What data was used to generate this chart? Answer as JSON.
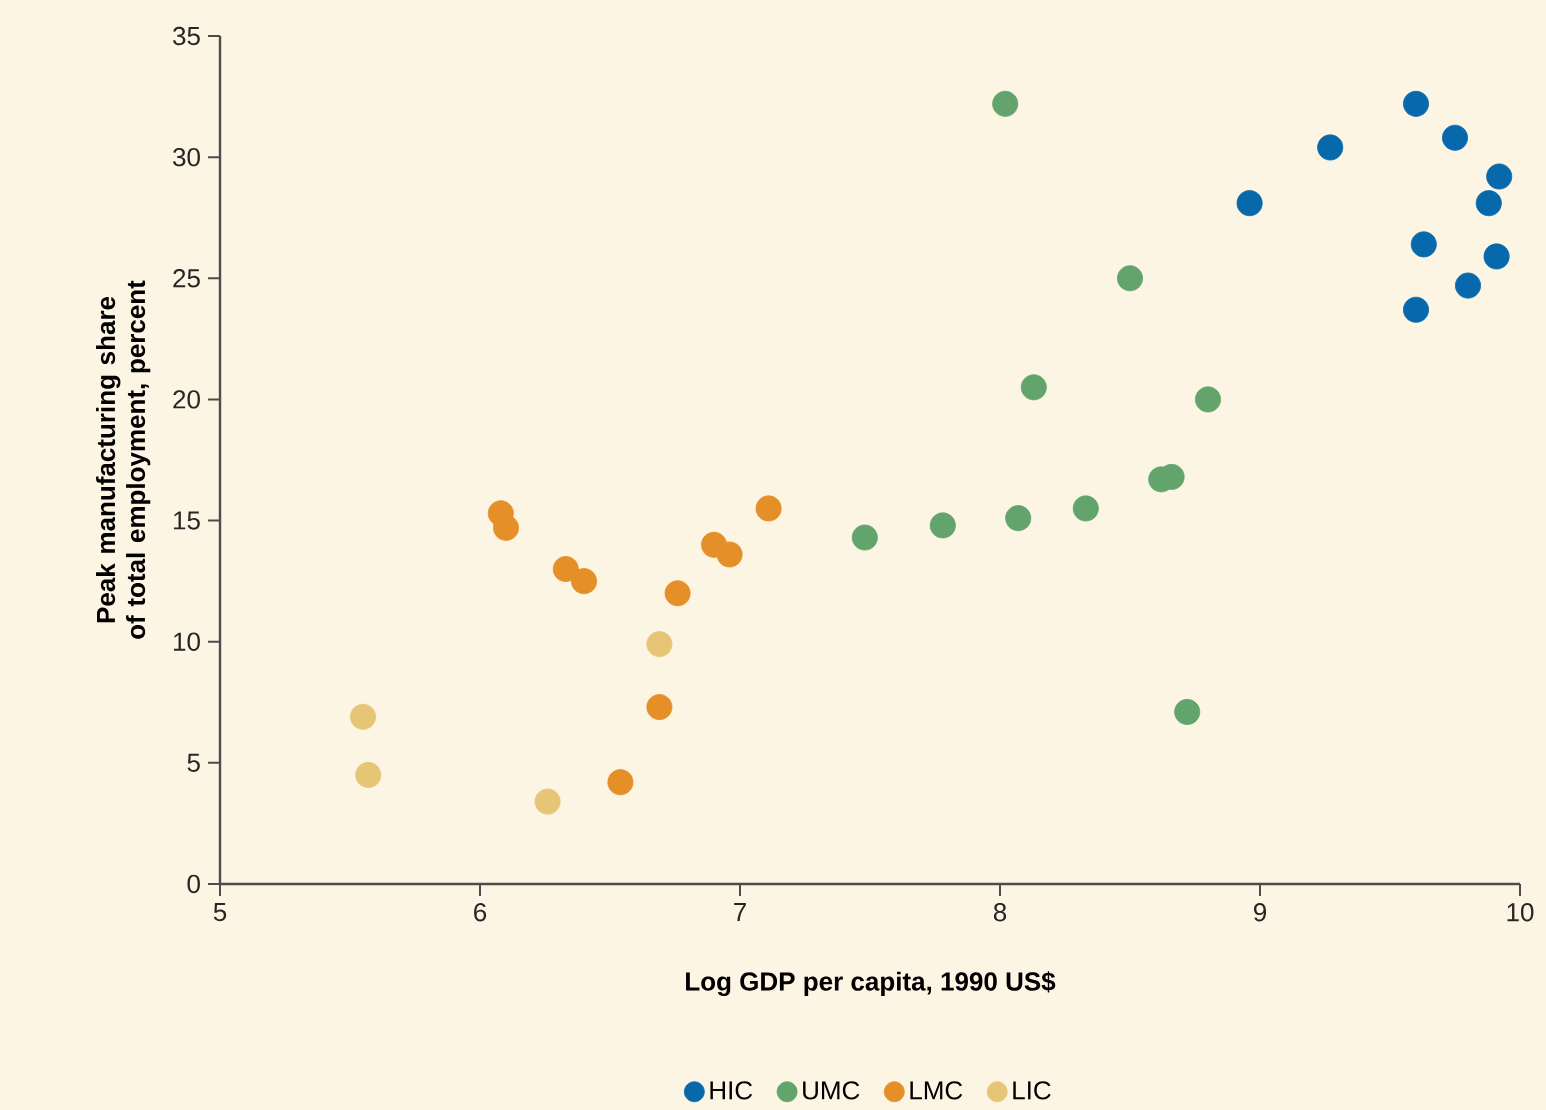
{
  "chart_data": {
    "type": "scatter",
    "xlabel": "Log GDP per capita, 1990 US$",
    "ylabel": "Peak manufacturing share of total employment, percent",
    "xlim": [
      5,
      10
    ],
    "xticks": [
      5,
      6,
      7,
      8,
      9,
      10
    ],
    "ylim": [
      0,
      35
    ],
    "yticks": [
      0,
      5,
      10,
      15,
      20,
      25,
      30,
      35
    ],
    "grid": false,
    "legend": "bottom",
    "marker": "circle",
    "series": [
      {
        "name": "HIC",
        "color": "#0868ac",
        "x": [
          9.6,
          9.27,
          9.75,
          9.92,
          8.96,
          9.88,
          9.63,
          9.91,
          9.8,
          9.6
        ],
        "values": [
          32.2,
          30.4,
          30.8,
          29.2,
          28.1,
          28.1,
          26.4,
          25.9,
          24.7,
          23.7
        ]
      },
      {
        "name": "UMC",
        "color": "#62a46c",
        "x": [
          8.02,
          8.5,
          8.13,
          8.8,
          8.62,
          8.66,
          8.33,
          8.07,
          7.78,
          7.48,
          8.72
        ],
        "values": [
          32.2,
          25,
          20.5,
          20,
          16.7,
          16.8,
          15.5,
          15.1,
          14.8,
          14.3,
          7.1
        ]
      },
      {
        "name": "LMC",
        "color": "#e48f28",
        "x": [
          6.08,
          6.1,
          6.33,
          6.4,
          6.76,
          6.9,
          6.96,
          7.11,
          6.69,
          6.54
        ],
        "values": [
          15.3,
          14.7,
          13,
          12.5,
          12,
          14,
          13.6,
          15.5,
          7.3,
          4.2
        ]
      },
      {
        "name": "LIC",
        "color": "#e6c576",
        "x": [
          5.55,
          5.57,
          6.26,
          6.69
        ],
        "values": [
          6.9,
          4.5,
          3.4,
          9.9
        ]
      }
    ]
  }
}
